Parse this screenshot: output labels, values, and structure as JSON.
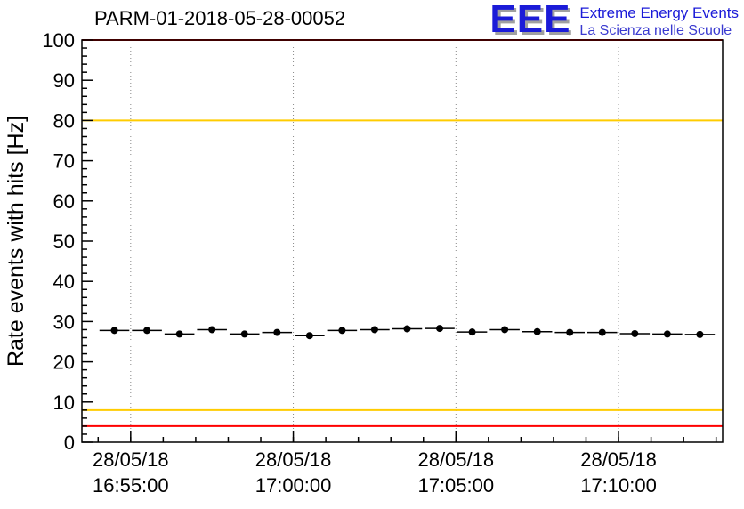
{
  "header": {
    "title": "PARM-01-2018-05-28-00052",
    "logo": {
      "text": "EEE",
      "line1": "Extreme Energy Events",
      "line2": "La Scienza nelle Scuole",
      "color": "#1b1bd8"
    }
  },
  "chart_data": {
    "type": "line",
    "title": "PARM-01-2018-05-28-00052",
    "xlabel": "",
    "ylabel": "Rate events with hits [Hz]",
    "ylim": [
      0,
      100
    ],
    "y_major_step": 10,
    "y_minor_step": 2,
    "grid": "vertical-dotted",
    "legend": "none",
    "x_domain_minutes": [
      1013.5,
      1033.2
    ],
    "x_minor_step": 1,
    "x_ticks": [
      {
        "minute": 1015,
        "date": "28/05/18",
        "time": "16:55:00"
      },
      {
        "minute": 1020,
        "date": "28/05/18",
        "time": "17:00:00"
      },
      {
        "minute": 1025,
        "date": "28/05/18",
        "time": "17:05:00"
      },
      {
        "minute": 1030,
        "date": "28/05/18",
        "time": "17:10:00"
      }
    ],
    "reference_lines": [
      {
        "y": 100,
        "color": "#ff0000"
      },
      {
        "y": 80,
        "color": "#ffcc00"
      },
      {
        "y": 8,
        "color": "#ffcc00"
      },
      {
        "y": 4,
        "color": "#ff0000"
      }
    ],
    "series": [
      {
        "name": "rate-events-with-hits",
        "marker": "filled-circle",
        "color": "#000000",
        "x_err_minutes": 0.5,
        "y_err": 0.68,
        "x_minutes": [
          1014.5,
          1015.5,
          1016.5,
          1017.5,
          1018.5,
          1019.5,
          1020.5,
          1021.5,
          1022.5,
          1023.5,
          1024.5,
          1025.5,
          1026.5,
          1027.5,
          1028.5,
          1029.5,
          1030.5,
          1031.5,
          1032.5
        ],
        "y": [
          27.8,
          27.8,
          26.9,
          28.0,
          26.9,
          27.3,
          26.5,
          27.8,
          28.0,
          28.2,
          28.3,
          27.4,
          28.0,
          27.5,
          27.3,
          27.3,
          27.0,
          26.9,
          26.8
        ]
      }
    ]
  }
}
